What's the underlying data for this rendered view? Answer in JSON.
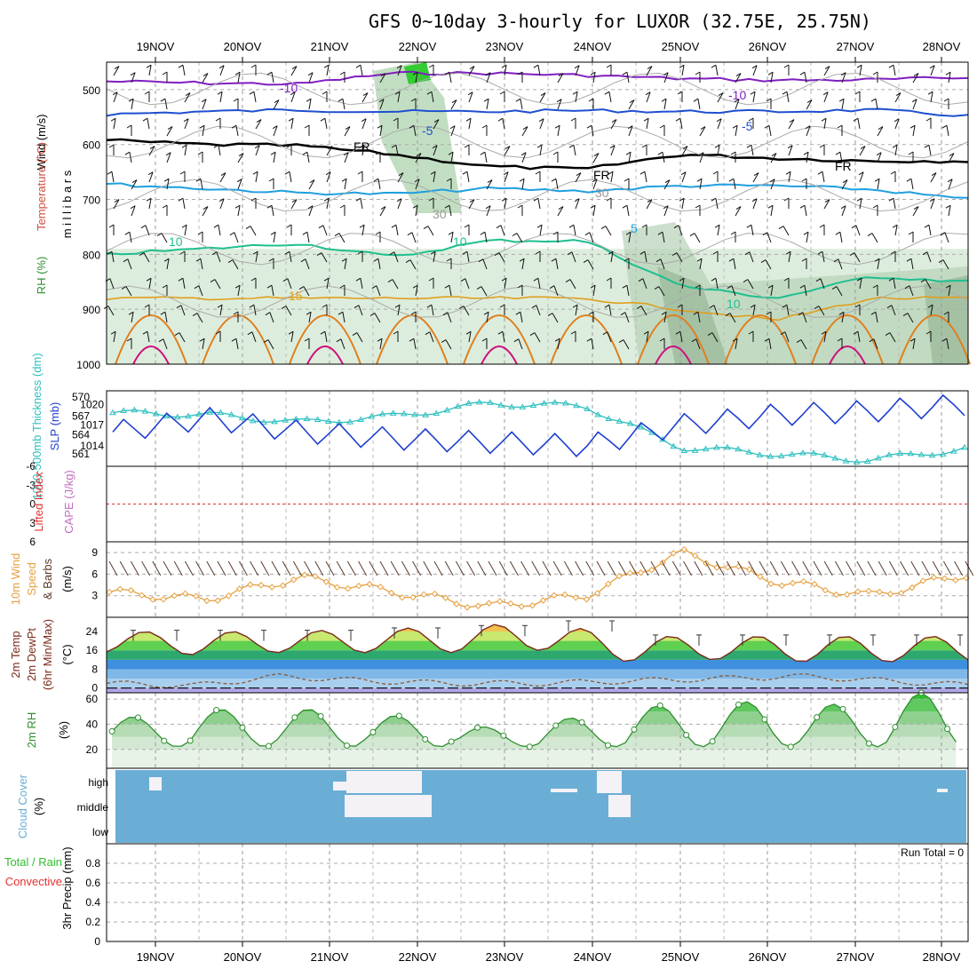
{
  "title": "GFS 0~10day 3-hourly for LUXOR (32.75E, 25.75N)",
  "colors": {
    "temp_cold": "#7f1fbf",
    "temp_m5": "#1f4fcf",
    "temp_fr": "#000000",
    "temp_5": "#1f9fdf",
    "temp_10": "#1fbf8f",
    "temp_15": "#df9f1f",
    "temp_20": "#df7f1f",
    "temp_25": "#cf0f7f",
    "rh_fill": "#cfe6cf",
    "thickness": "#2fbfbf",
    "slp": "#1f3fcf",
    "wind10": "#e6a040",
    "cloud": "#6aaed6",
    "lifted": "#e33030"
  },
  "panels": {
    "upper_air": {
      "y_title": "m i l l i b a r s",
      "label_rh": "RH (%)",
      "label_temp": "Temperature (°C)",
      "label_wind": "Wind (m/s)",
      "y_ticks": [
        "500",
        "600",
        "700",
        "800",
        "900",
        "1000"
      ],
      "contour_labels": {
        "m10": "-10",
        "m5": "-5",
        "fr": "FR",
        "p5": "5",
        "p10": "10",
        "p15": "15",
        "rh30": "30"
      }
    },
    "slp": {
      "label_thick": "1000-500mb Thickness (dm)",
      "label_slp": "SLP (mb)",
      "thick_ticks": [
        "570",
        "567",
        "564",
        "561"
      ],
      "slp_ticks": [
        "1020",
        "1017",
        "1014"
      ]
    },
    "cape": {
      "label_li": "Lifted Index",
      "label_cape": "CAPE (J/kg)",
      "ticks": [
        "-6",
        "-3",
        "0",
        "3",
        "6"
      ]
    },
    "wind10": {
      "label_a": "10m Wind",
      "label_b": "Speed",
      "label_c": "& Barbs",
      "unit": "(m/s)",
      "ticks": [
        "9",
        "6",
        "3"
      ]
    },
    "temp2m": {
      "label_a": "2m Temp",
      "label_b": "2m DewPt",
      "label_c": "(6hr Min/Max)",
      "unit": "(°C)",
      "ticks": [
        "24",
        "16",
        "8",
        "0"
      ]
    },
    "rh2m": {
      "label": "2m RH",
      "unit": "(%)",
      "ticks": [
        "60",
        "40",
        "20"
      ]
    },
    "cloud": {
      "label_a": "Cloud Cover",
      "unit": "(%)",
      "levels": [
        "high",
        "middle",
        "low"
      ]
    },
    "precip": {
      "label_a": "3hr Precip (mm)",
      "label_total": "Total / Rain",
      "label_conv": "Convective",
      "run_total": "Run Total = 0",
      "ticks": [
        "0.8",
        "0.6",
        "0.4",
        "0.2",
        "0"
      ]
    }
  },
  "chart_data": [
    {
      "type": "line",
      "panel": "upper_air_pressure_levels",
      "x": [
        "19NOV",
        "20NOV",
        "21NOV",
        "22NOV",
        "23NOV",
        "24NOV",
        "25NOV",
        "26NOV",
        "27NOV",
        "28NOV"
      ],
      "ylim": [
        450,
        1000
      ],
      "series": [
        {
          "name": "-10",
          "values": [
            485,
            488,
            490,
            470,
            470,
            474,
            480,
            483,
            482,
            478
          ]
        },
        {
          "name": "-5",
          "values": [
            545,
            540,
            537,
            540,
            540,
            538,
            540,
            540,
            537,
            548
          ]
        },
        {
          "name": "FR",
          "values": [
            592,
            600,
            602,
            618,
            640,
            645,
            618,
            625,
            630,
            630
          ]
        },
        {
          "name": "5",
          "values": [
            672,
            680,
            688,
            690,
            680,
            685,
            675,
            675,
            682,
            700
          ]
        },
        {
          "name": "10",
          "values": [
            800,
            790,
            780,
            805,
            775,
            775,
            858,
            880,
            840,
            850
          ]
        },
        {
          "name": "15",
          "values": [
            880,
            880,
            880,
            880,
            880,
            880,
            900,
            920,
            880,
            880
          ]
        }
      ]
    },
    {
      "type": "line",
      "panel": "thickness_slp",
      "x": [
        "19NOV",
        "20NOV",
        "21NOV",
        "22NOV",
        "23NOV",
        "24NOV",
        "25NOV",
        "26NOV",
        "27NOV",
        "28NOV"
      ],
      "series": [
        {
          "name": "1000-500mb Thickness (dm)",
          "values": [
            567.5,
            567.2,
            566,
            567,
            569,
            568.5,
            562,
            561,
            560,
            561.8
          ]
        },
        {
          "name": "SLP (mb)",
          "values": [
            1016,
            1018,
            1016,
            1015,
            1014.5,
            1014,
            1017,
            1018.5,
            1019,
            1020
          ]
        }
      ]
    },
    {
      "type": "line",
      "panel": "lifted_index",
      "x": [
        "19NOV",
        "28NOV"
      ],
      "ylim": [
        -6,
        6
      ],
      "series": [
        {
          "name": "Lifted Index",
          "values": [
            0,
            0
          ]
        }
      ]
    },
    {
      "type": "line",
      "panel": "wind10m",
      "x": [
        "19NOV",
        "20NOV",
        "21NOV",
        "22NOV",
        "23NOV",
        "24NOV",
        "25NOV",
        "26NOV",
        "27NOV",
        "28NOV"
      ],
      "ylim": [
        0,
        10.5
      ],
      "series": [
        {
          "name": "10m Wind Speed",
          "values": [
            3.5,
            2.5,
            5.5,
            3.5,
            1.5,
            3.0,
            9.0,
            5.0,
            3.0,
            6.0
          ]
        }
      ]
    },
    {
      "type": "area",
      "panel": "temp2m",
      "x": [
        "19NOV",
        "20NOV",
        "21NOV",
        "22NOV",
        "23NOV",
        "24NOV",
        "25NOV",
        "26NOV",
        "27NOV",
        "28NOV"
      ],
      "ylim": [
        -2,
        30
      ],
      "series": [
        {
          "name": "2m Temp max",
          "values": [
            24,
            24,
            24,
            25,
            26,
            28,
            22,
            22,
            22,
            22
          ]
        },
        {
          "name": "2m Temp min",
          "values": [
            15,
            14,
            15,
            15,
            15,
            16,
            11,
            12,
            11,
            11
          ]
        },
        {
          "name": "2m DewPt",
          "values": [
            2,
            1,
            5,
            3,
            2,
            2,
            3,
            4,
            5,
            3
          ]
        }
      ]
    },
    {
      "type": "area",
      "panel": "rh2m",
      "x": [
        "19NOV",
        "20NOV",
        "21NOV",
        "22NOV",
        "23NOV",
        "24NOV",
        "25NOV",
        "26NOV",
        "27NOV",
        "28NOV"
      ],
      "ylim": [
        5,
        65
      ],
      "series": [
        {
          "name": "2m RH",
          "values": [
            46,
            52,
            52,
            47,
            38,
            45,
            55,
            58,
            56,
            65
          ]
        }
      ]
    },
    {
      "type": "heatmap",
      "panel": "cloud_cover",
      "x": [
        "19NOV",
        "20NOV",
        "21NOV",
        "22NOV",
        "23NOV",
        "24NOV",
        "25NOV",
        "26NOV",
        "27NOV",
        "28NOV"
      ]
    },
    {
      "type": "bar",
      "panel": "precip3hr",
      "x": [
        "19NOV",
        "20NOV",
        "21NOV",
        "22NOV",
        "23NOV",
        "24NOV",
        "25NOV",
        "26NOV",
        "27NOV",
        "28NOV"
      ],
      "ylim": [
        0,
        1
      ],
      "values": [
        0,
        0,
        0,
        0,
        0,
        0,
        0,
        0,
        0,
        0
      ]
    }
  ]
}
